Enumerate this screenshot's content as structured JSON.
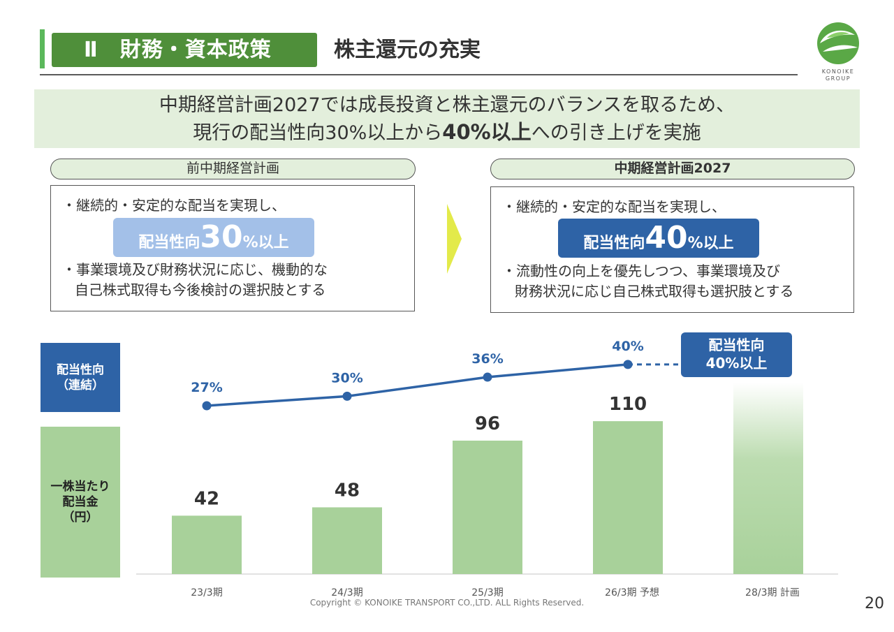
{
  "header": {
    "section_tag": "Ⅱ　財務・資本政策",
    "title": "株主還元の充実",
    "logo_text_line1": "KONOIKE",
    "logo_text_line2": "GROUP"
  },
  "banner": {
    "line1": "中期経営計画2027では成長投資と株主還元のバランスを取るため、",
    "line2_pre": "現行の配当性向30%以上から",
    "line2_bold": "40%以上",
    "line2_post": "への引き上げを実施"
  },
  "left_plan": {
    "title": "前中期経営計画",
    "bullet1": "・継続的・安定的な配当を実現し、",
    "payout_prefix": "配当性向",
    "payout_number": "30",
    "payout_suffix": "%以上",
    "bullet2_line1": "・事業環境及び財務状況に応じ、機動的な",
    "bullet2_line2": "自己株式取得も今後検討の選択肢とする",
    "payout_color": "#a3c0e8"
  },
  "right_plan": {
    "title": "中期経営計画2027",
    "bullet1": "・継続的・安定的な配当を実現し、",
    "payout_prefix": "配当性向",
    "payout_number": "40",
    "payout_suffix": "%以上",
    "bullet2_line1": "・流動性の向上を優先しつつ、事業環境及び",
    "bullet2_line2": "財務状況に応じ自己株式取得も選択肢とする",
    "payout_color": "#2e63a6"
  },
  "side_labels": {
    "payout_ratio_line1": "配当性向",
    "payout_ratio_line2": "（連結）",
    "dps_line1": "一株当たり",
    "dps_line2": "配当金",
    "dps_line3": "（円）"
  },
  "target": {
    "line1": "配当性向",
    "line2": "40%以上"
  },
  "chart_data": {
    "type": "bar",
    "categories": [
      "23/3期",
      "24/3期",
      "25/3期",
      "26/3期 予想",
      "28/3期 計画"
    ],
    "series": [
      {
        "name": "一株当たり配当金（円）",
        "values": [
          42,
          48,
          96,
          110,
          null
        ],
        "labels": [
          "42",
          "48",
          "96",
          "110",
          ""
        ],
        "color": "#a8d19a"
      },
      {
        "name": "配当性向（連結）",
        "type": "line",
        "values": [
          27,
          30,
          36,
          40,
          null
        ],
        "labels": [
          "27%",
          "30%",
          "36%",
          "40%",
          ""
        ],
        "color": "#2e63a6"
      }
    ],
    "ylim": [
      0,
      125
    ],
    "line_ylim": [
      0,
      50
    ],
    "grid": false
  },
  "footer": {
    "copyright": "Copyright © KONOIKE TRANSPORT CO.,LTD.  ALL Rights Reserved.",
    "page_number": "20"
  }
}
